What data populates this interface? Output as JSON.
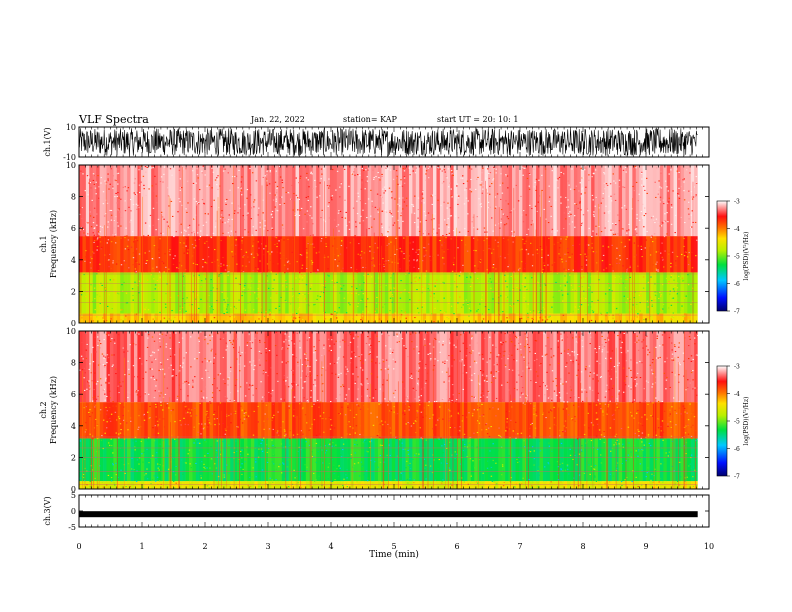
{
  "header": {
    "title": "VLF Spectra",
    "date": "Jan. 22, 2022",
    "station": "station= KAP",
    "start": "start UT =  20: 10: 1"
  },
  "chart_data": [
    {
      "type": "line",
      "ylabel": "ch.1(V)",
      "ylim": [
        -10,
        10
      ],
      "yticks": [
        "10",
        "-10"
      ],
      "note": "dense broadband noise waveform filling most of the range"
    },
    {
      "type": "heatmap",
      "ylabel": "ch.1\nFrequency (kHz)",
      "ylim": [
        0,
        10
      ],
      "yticks": [
        "0",
        "2",
        "4",
        "6",
        "8",
        "10"
      ],
      "colorbar": {
        "label": "log(PSD)(V²/Hz)",
        "range": [
          -7,
          -3
        ],
        "ticks": [
          "-3",
          "-4",
          "-5",
          "-6",
          "-7"
        ]
      },
      "bands": [
        {
          "from_khz": 0,
          "to_khz": 0.6,
          "level": -4.3
        },
        {
          "from_khz": 0.6,
          "to_khz": 3.2,
          "level": -4.8
        },
        {
          "from_khz": 3.2,
          "to_khz": 5.5,
          "level": -3.7
        },
        {
          "from_khz": 5.5,
          "to_khz": 10,
          "level": -3.2
        }
      ],
      "lines_khz": [
        0.5,
        1.3,
        2.0,
        2.5,
        3.1
      ]
    },
    {
      "type": "heatmap",
      "ylabel": "ch.2\nFrequency (kHz)",
      "ylim": [
        0,
        10
      ],
      "yticks": [
        "0",
        "2",
        "4",
        "6",
        "8",
        "10"
      ],
      "colorbar": {
        "label": "log(PSD)(V²/Hz)",
        "range": [
          -7,
          -3
        ],
        "ticks": [
          "-3",
          "-4",
          "-5",
          "-6",
          "-7"
        ]
      },
      "bands": [
        {
          "from_khz": 0,
          "to_khz": 0.5,
          "level": -4.5
        },
        {
          "from_khz": 0.5,
          "to_khz": 3.2,
          "level": -5.3
        },
        {
          "from_khz": 3.2,
          "to_khz": 5.5,
          "level": -3.8
        },
        {
          "from_khz": 5.5,
          "to_khz": 10,
          "level": -3.3
        }
      ],
      "lines_khz": [
        0.3,
        1.1,
        2.0,
        2.6,
        3.3
      ]
    },
    {
      "type": "line",
      "ylabel": "ch.3(V)",
      "ylim": [
        -5,
        5
      ],
      "yticks": [
        "5",
        "0",
        "-5"
      ],
      "note": "flat thick trace near -1 V",
      "level": -1
    }
  ],
  "time_axis": {
    "xlabel": "Time (min)",
    "xlim": [
      0,
      10
    ],
    "ticks": [
      "0",
      "1",
      "2",
      "3",
      "4",
      "5",
      "6",
      "7",
      "8",
      "9",
      "10"
    ],
    "data_end_min": 9.82
  }
}
